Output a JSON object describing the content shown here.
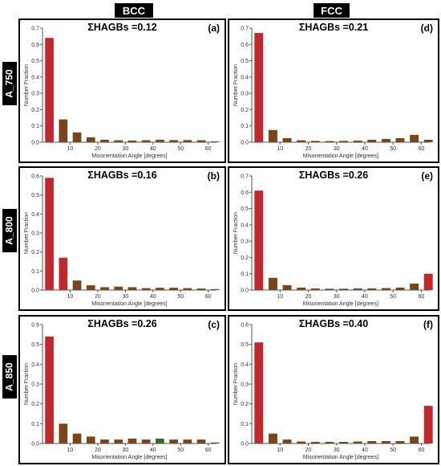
{
  "headers": {
    "left": "BCC",
    "right": "FCC"
  },
  "row_labels": [
    "A_750",
    "A_800",
    "A_850"
  ],
  "colors": {
    "bar_red": "#c0282c",
    "bar_brown": "#7a4518",
    "bar_green": "#3f6b2a",
    "frame": "#000000"
  },
  "chart_data": [
    {
      "type": "bar",
      "panel": "(a)",
      "title": "ΣHAGBs =0.12",
      "xlabel": "Misorientation Angle [degrees]",
      "ylabel": "Number Fraction",
      "ylim": [
        0,
        0.7
      ],
      "yticks": [
        0.0,
        0.1,
        0.2,
        0.3,
        0.4,
        0.5,
        0.6,
        0.7
      ],
      "xlim": [
        0,
        63
      ],
      "xticks": [
        10,
        20,
        30,
        40,
        50,
        60
      ],
      "x": [
        2.5,
        7.5,
        12.5,
        17.5,
        22.5,
        27.5,
        32.5,
        37.5,
        42.5,
        47.5,
        52.5,
        57.5,
        62.5
      ],
      "values": [
        0.64,
        0.14,
        0.06,
        0.03,
        0.015,
        0.012,
        0.01,
        0.012,
        0.015,
        0.013,
        0.013,
        0.012,
        0.005
      ],
      "colors": [
        "red",
        "brown",
        "brown",
        "brown",
        "brown",
        "brown",
        "brown",
        "brown",
        "brown",
        "brown",
        "brown",
        "brown",
        "brown"
      ],
      "grid": false
    },
    {
      "type": "bar",
      "panel": "(d)",
      "title": "ΣHAGBs =0.21",
      "xlabel": "Misorientation Angle [degrees]",
      "ylabel": "Number Fraction",
      "ylim": [
        0,
        0.7
      ],
      "yticks": [
        0.0,
        0.1,
        0.2,
        0.3,
        0.4,
        0.5,
        0.6,
        0.7
      ],
      "xlim": [
        0,
        63
      ],
      "xticks": [
        10,
        20,
        30,
        40,
        50,
        60
      ],
      "x": [
        2.5,
        7.5,
        12.5,
        17.5,
        22.5,
        27.5,
        32.5,
        37.5,
        42.5,
        47.5,
        52.5,
        57.5,
        62.5
      ],
      "values": [
        0.67,
        0.075,
        0.025,
        0.012,
        0.008,
        0.007,
        0.008,
        0.01,
        0.015,
        0.02,
        0.025,
        0.045,
        0.015
      ],
      "colors": [
        "red",
        "brown",
        "brown",
        "brown",
        "brown",
        "brown",
        "brown",
        "brown",
        "brown",
        "brown",
        "brown",
        "brown",
        "brown"
      ],
      "grid": false
    },
    {
      "type": "bar",
      "panel": "(b)",
      "title": "ΣHAGBs =0.16",
      "xlabel": "Misorientation Angle [degrees]",
      "ylabel": "Number Fraction",
      "ylim": [
        0,
        0.6
      ],
      "yticks": [
        0.0,
        0.1,
        0.2,
        0.3,
        0.4,
        0.5,
        0.6
      ],
      "xlim": [
        0,
        63
      ],
      "xticks": [
        10,
        20,
        30,
        40,
        50,
        60
      ],
      "x": [
        2.5,
        7.5,
        12.5,
        17.5,
        22.5,
        27.5,
        32.5,
        37.5,
        42.5,
        47.5,
        52.5,
        57.5,
        62.5
      ],
      "values": [
        0.59,
        0.17,
        0.05,
        0.025,
        0.015,
        0.018,
        0.015,
        0.01,
        0.012,
        0.012,
        0.01,
        0.008,
        0.005
      ],
      "colors": [
        "red",
        "red",
        "brown",
        "brown",
        "brown",
        "brown",
        "brown",
        "brown",
        "brown",
        "brown",
        "brown",
        "brown",
        "brown"
      ],
      "grid": false
    },
    {
      "type": "bar",
      "panel": "(e)",
      "title": "ΣHAGBs =0.26",
      "xlabel": "Misorientation Angle [degrees]",
      "ylabel": "Number Fraction",
      "ylim": [
        0,
        0.7
      ],
      "yticks": [
        0.0,
        0.1,
        0.2,
        0.3,
        0.4,
        0.5,
        0.6,
        0.7
      ],
      "xlim": [
        0,
        63
      ],
      "xticks": [
        10,
        20,
        30,
        40,
        50,
        60
      ],
      "x": [
        2.5,
        7.5,
        12.5,
        17.5,
        22.5,
        27.5,
        32.5,
        37.5,
        42.5,
        47.5,
        52.5,
        57.5,
        62.5
      ],
      "values": [
        0.61,
        0.075,
        0.03,
        0.015,
        0.01,
        0.008,
        0.008,
        0.01,
        0.01,
        0.012,
        0.015,
        0.04,
        0.1
      ],
      "colors": [
        "red",
        "brown",
        "brown",
        "brown",
        "brown",
        "brown",
        "brown",
        "brown",
        "brown",
        "brown",
        "brown",
        "brown",
        "red"
      ],
      "grid": false
    },
    {
      "type": "bar",
      "panel": "(c)",
      "title": "ΣHAGBs =0.26",
      "xlabel": "Misorientation Angle [degrees]",
      "ylabel": "Number Fraction",
      "ylim": [
        0,
        0.6
      ],
      "yticks": [
        0.0,
        0.1,
        0.2,
        0.3,
        0.4,
        0.5,
        0.6
      ],
      "xlim": [
        0,
        63
      ],
      "xticks": [
        10,
        20,
        30,
        40,
        50,
        60
      ],
      "x": [
        2.5,
        7.5,
        12.5,
        17.5,
        22.5,
        27.5,
        32.5,
        37.5,
        42.5,
        47.5,
        52.5,
        57.5,
        62.5
      ],
      "values": [
        0.54,
        0.1,
        0.05,
        0.035,
        0.02,
        0.02,
        0.025,
        0.02,
        0.025,
        0.02,
        0.02,
        0.02,
        0.005
      ],
      "colors": [
        "red",
        "brown",
        "brown",
        "brown",
        "brown",
        "brown",
        "brown",
        "brown",
        "green",
        "brown",
        "brown",
        "brown",
        "brown"
      ],
      "grid": false
    },
    {
      "type": "bar",
      "panel": "(f)",
      "title": "ΣHAGBs =0.40",
      "xlabel": "Misorientation Angle [degrees]",
      "ylabel": "Number Fraction",
      "ylim": [
        0,
        0.6
      ],
      "yticks": [
        0.0,
        0.1,
        0.2,
        0.3,
        0.4,
        0.5,
        0.6
      ],
      "xlim": [
        0,
        63
      ],
      "xticks": [
        10,
        20,
        30,
        40,
        50,
        60
      ],
      "x": [
        2.5,
        7.5,
        12.5,
        17.5,
        22.5,
        27.5,
        32.5,
        37.5,
        42.5,
        47.5,
        52.5,
        57.5,
        62.5
      ],
      "values": [
        0.51,
        0.05,
        0.02,
        0.01,
        0.008,
        0.008,
        0.008,
        0.01,
        0.012,
        0.012,
        0.012,
        0.035,
        0.19
      ],
      "colors": [
        "red",
        "brown",
        "brown",
        "brown",
        "brown",
        "brown",
        "brown",
        "brown",
        "brown",
        "brown",
        "brown",
        "brown",
        "red"
      ],
      "grid": false
    }
  ]
}
